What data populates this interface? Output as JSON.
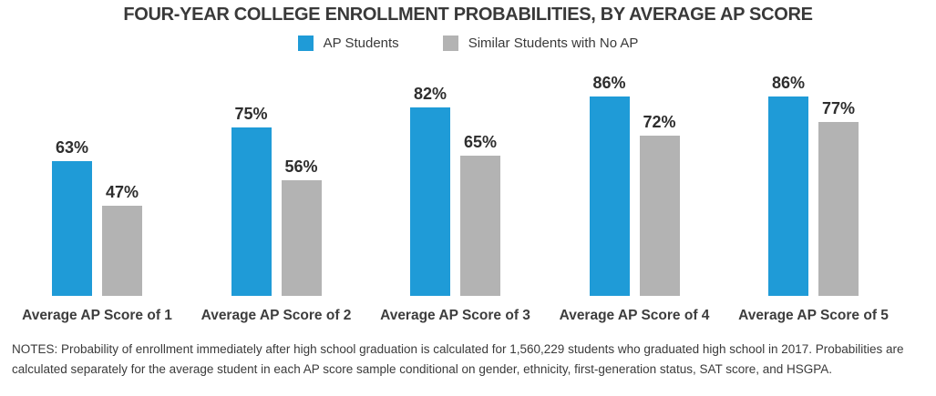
{
  "title": "FOUR-YEAR COLLEGE ENROLLMENT PROBABILITIES, BY AVERAGE AP SCORE",
  "legend": [
    {
      "label": "AP Students",
      "color": "#1f9bd7"
    },
    {
      "label": "Similar Students with No AP",
      "color": "#b3b3b3"
    }
  ],
  "chart_data": {
    "type": "bar",
    "title": "FOUR-YEAR COLLEGE ENROLLMENT PROBABILITIES, BY AVERAGE AP SCORE",
    "categories": [
      "Average AP Score of 1",
      "Average AP Score of 2",
      "Average AP Score of 3",
      "Average AP Score of 4",
      "Average AP Score of 5"
    ],
    "series": [
      {
        "name": "AP Students",
        "color": "#1f9bd7",
        "values": [
          63,
          75,
          82,
          86,
          86
        ]
      },
      {
        "name": "Similar Students with No AP",
        "color": "#b3b3b3",
        "values": [
          47,
          56,
          65,
          72,
          77
        ]
      }
    ],
    "value_suffix": "%",
    "data_labels": true,
    "xlabel": "",
    "ylabel": "",
    "ylim": [
      15,
      96
    ],
    "grid": false,
    "axis_lines": false,
    "legend_position": "top"
  },
  "notes": "NOTES: Probability of enrollment immediately after high school graduation is calculated for 1,560,229 students who graduated high school in 2017. Probabilities are calculated separately for the average student in each AP score sample conditional on gender, ethnicity, first-generation status, SAT score, and HSGPA."
}
